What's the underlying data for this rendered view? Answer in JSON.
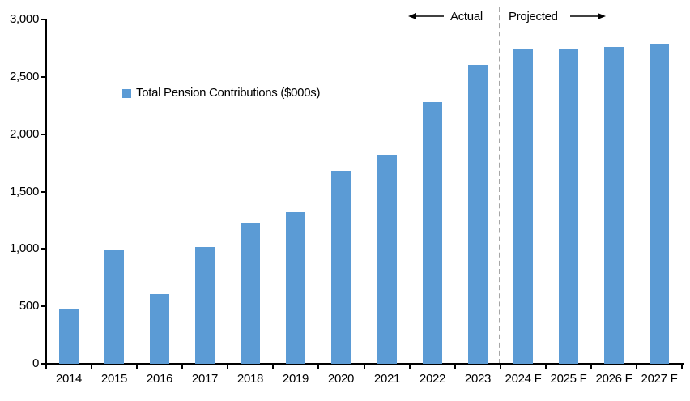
{
  "chart_data": {
    "type": "bar",
    "title": "",
    "legend_label": "Total Pension Contributions ($000s)",
    "categories": [
      "2014",
      "2015",
      "2016",
      "2017",
      "2018",
      "2019",
      "2020",
      "2021",
      "2022",
      "2023",
      "2024 F",
      "2025 F",
      "2026 F",
      "2027 F"
    ],
    "values": [
      470,
      990,
      610,
      1020,
      1230,
      1320,
      1680,
      1820,
      2280,
      2610,
      2750,
      2740,
      2760,
      2790
    ],
    "ylim": [
      0,
      3000
    ],
    "ytick_interval": 500,
    "ytick_labels": [
      "0",
      "500",
      "1,000",
      "1,500",
      "2,000",
      "2,500",
      "3,000"
    ],
    "grid": false,
    "legend_position": "inside-upper-left",
    "bar_color": "#5B9BD5",
    "axis_color": "#000000",
    "divider_color": "#A6A6A6",
    "annotations": {
      "actual_label": "Actual",
      "projected_label": "Projected",
      "divider_between": [
        "2023",
        "2024 F"
      ]
    }
  }
}
